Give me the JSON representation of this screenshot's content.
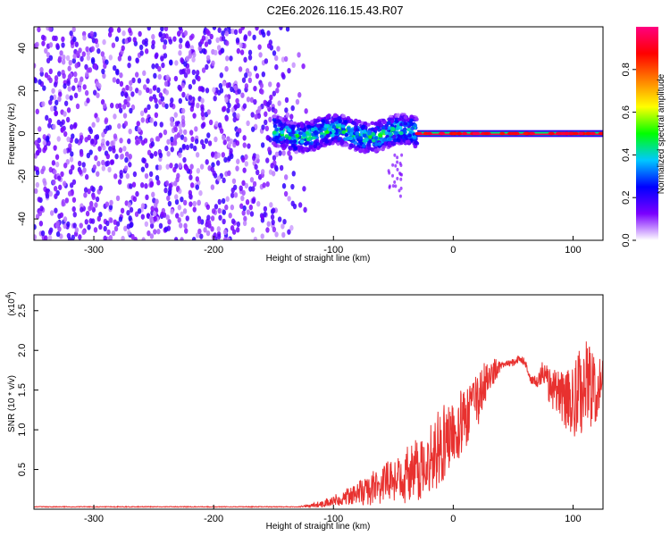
{
  "title": "C2E6.2026.116.15.43.R07",
  "chart_data": [
    {
      "type": "heatmap",
      "name": "spectrogram",
      "xlabel": "Height of straight line (km)",
      "ylabel": "Frequency (Hz)",
      "xlim": [
        -350,
        125
      ],
      "ylim": [
        -50,
        50
      ],
      "x_ticks": [
        -300,
        -200,
        -100,
        0,
        100
      ],
      "y_ticks": [
        -40,
        -20,
        0,
        20,
        40
      ],
      "colorbar": {
        "label": "Normalized spectral amplitude",
        "range": [
          0.0,
          1.0
        ],
        "ticks": [
          0.0,
          0.2,
          0.4,
          0.6,
          0.8
        ],
        "tick_labels": [
          "0.0",
          "0.2",
          "0.4",
          "0.6",
          "0.8"
        ],
        "colormap": [
          "#ffffff",
          "#7a00ff",
          "#0000ff",
          "#00c8ff",
          "#00ff00",
          "#ffff00",
          "#ff8000",
          "#ff0000",
          "#ff0080"
        ]
      },
      "description_regions": [
        {
          "x_range": [
            -350,
            -130
          ],
          "freq_range": [
            -50,
            50
          ],
          "level": 0.15,
          "pattern": "broadband noise"
        },
        {
          "x_range": [
            -150,
            -30
          ],
          "freq_center": 0,
          "freq_halfwidth": 7,
          "level": 0.4,
          "pattern": "signal band"
        },
        {
          "x_range": [
            -30,
            125
          ],
          "freq_center": 0,
          "freq_halfwidth": 2,
          "level": 0.95,
          "pattern": "carrier line"
        }
      ]
    },
    {
      "type": "line",
      "name": "snr",
      "xlabel": "Height of straight line (km)",
      "ylabel": "SNR (10 * v/v)",
      "y_scale_label": "(x10",
      "y_scale_exponent": "4",
      "xlim": [
        -350,
        125
      ],
      "ylim": [
        0,
        2.7
      ],
      "x_ticks": [
        -300,
        -200,
        -100,
        0,
        100
      ],
      "y_ticks": [
        0.5,
        1.0,
        1.5,
        2.0,
        2.5
      ],
      "y_tick_labels": [
        "0.5",
        "1.0",
        "1.5",
        "2.0",
        "2.5"
      ],
      "color": "#e8312f",
      "envelope": {
        "x": [
          -350,
          -130,
          -110,
          -90,
          -70,
          -50,
          -30,
          -20,
          -10,
          0,
          10,
          20,
          25,
          30,
          40,
          50,
          55,
          60,
          65,
          70,
          75,
          80,
          90,
          100,
          105,
          110,
          115,
          120,
          125
        ],
        "mean": [
          0.03,
          0.03,
          0.06,
          0.15,
          0.25,
          0.35,
          0.5,
          0.65,
          0.8,
          0.95,
          1.15,
          1.35,
          1.55,
          1.7,
          1.8,
          1.85,
          1.9,
          1.85,
          1.62,
          1.6,
          1.75,
          1.58,
          1.45,
          1.35,
          1.4,
          1.6,
          1.5,
          1.45,
          1.8
        ],
        "amplitude": [
          0.005,
          0.005,
          0.04,
          0.1,
          0.2,
          0.3,
          0.4,
          0.45,
          0.5,
          0.45,
          0.4,
          0.35,
          0.3,
          0.25,
          0.05,
          0.05,
          0.05,
          0.05,
          0.05,
          0.1,
          0.15,
          0.25,
          0.35,
          0.45,
          0.6,
          0.6,
          0.5,
          0.4,
          0.15
        ]
      }
    }
  ]
}
